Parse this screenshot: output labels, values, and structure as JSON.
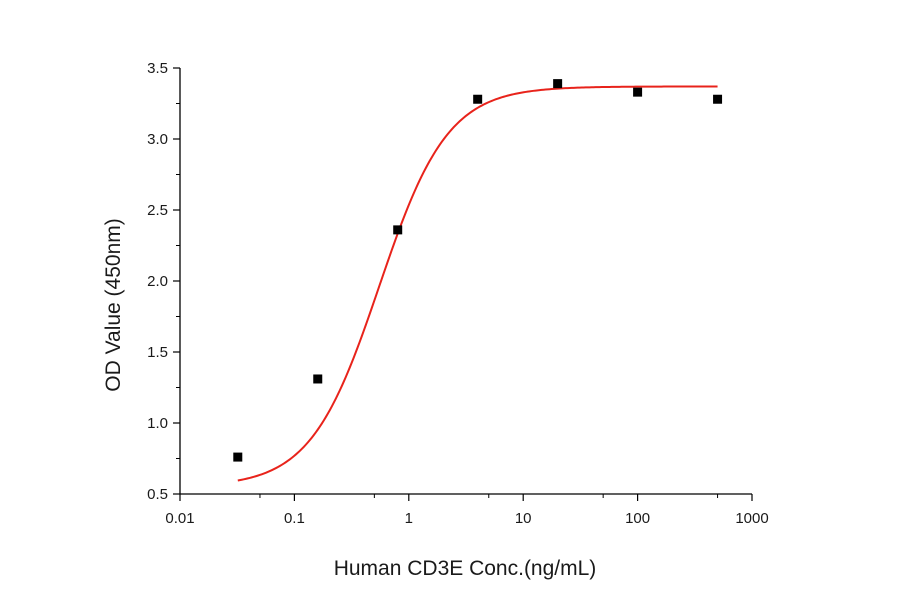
{
  "chart_data": {
    "type": "scatter",
    "title": "",
    "xlabel": "Human CD3E Conc.(ng/mL)",
    "ylabel": "OD Value (450nm)",
    "x_scale": "log",
    "xlim": [
      0.01,
      1000
    ],
    "ylim": [
      0.5,
      3.5
    ],
    "x_ticks": [
      0.01,
      0.1,
      1,
      10,
      100,
      1000
    ],
    "x_tick_labels": [
      "0.01",
      "0.1",
      "1",
      "10",
      "100",
      "1000"
    ],
    "y_ticks": [
      0.5,
      1.0,
      1.5,
      2.0,
      2.5,
      3.0,
      3.5
    ],
    "y_tick_labels": [
      "0.5",
      "1.0",
      "1.5",
      "2.0",
      "2.5",
      "3.0",
      "3.5"
    ],
    "grid": false,
    "legend": "none",
    "series": [
      {
        "kind": "points",
        "marker": "square",
        "color": "#000000",
        "x": [
          0.032,
          0.16,
          0.8,
          4,
          20,
          100,
          500
        ],
        "y": [
          0.76,
          1.31,
          2.36,
          3.28,
          3.39,
          3.33,
          3.28
        ]
      },
      {
        "kind": "fit-curve",
        "model": "4PL",
        "color": "#e8231b",
        "x_range": [
          0.032,
          500
        ],
        "params": {
          "bottom": 0.55,
          "top": 3.37,
          "ec50": 0.55,
          "hill": 1.45
        }
      }
    ]
  }
}
